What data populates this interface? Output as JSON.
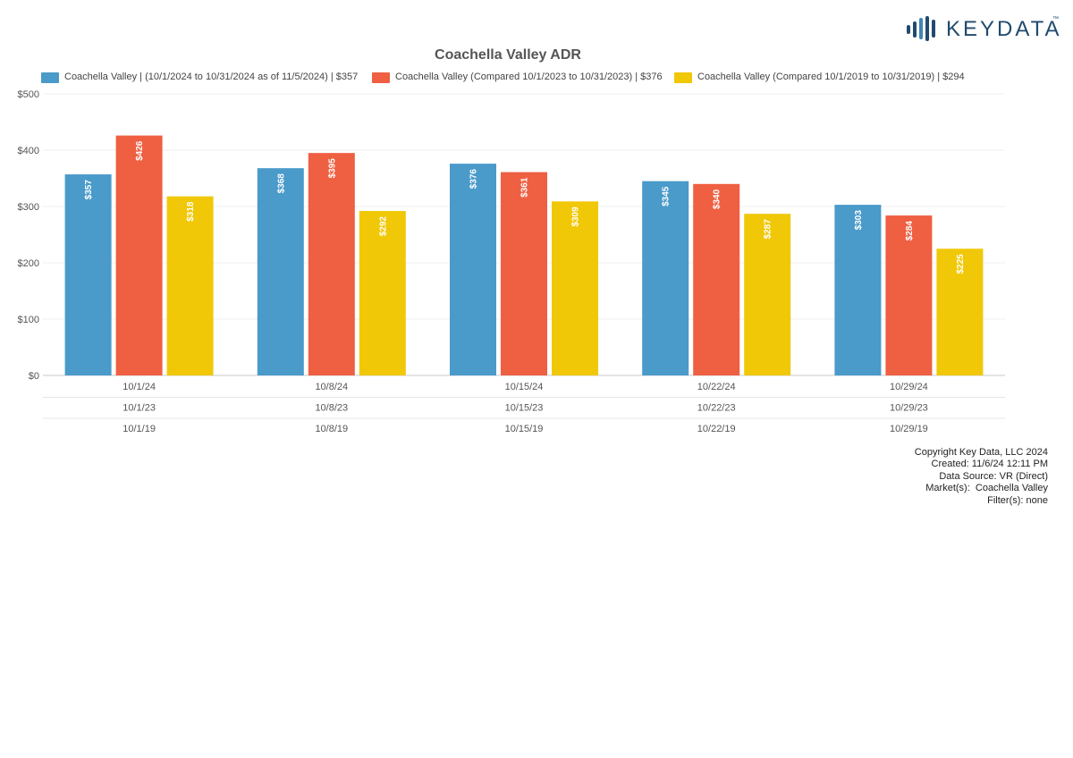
{
  "brand": {
    "logo_text": "KEYDATA",
    "logo_tm": "™",
    "logo_color": "#214a6e"
  },
  "chart_data": {
    "type": "bar",
    "title": "Coachella Valley ADR",
    "xlabel": "",
    "ylabel": "",
    "ylim": [
      0,
      500
    ],
    "yticks": [
      "$0",
      "$100",
      "$200",
      "$300",
      "$400",
      "$500"
    ],
    "ytick_values": [
      0,
      100,
      200,
      300,
      400,
      500
    ],
    "grid": true,
    "legend_position": "top",
    "categories": [
      "10/1/24",
      "10/8/24",
      "10/15/24",
      "10/22/24",
      "10/29/24"
    ],
    "category_rows": [
      [
        "10/1/24",
        "10/8/24",
        "10/15/24",
        "10/22/24",
        "10/29/24"
      ],
      [
        "10/1/23",
        "10/8/23",
        "10/15/23",
        "10/22/23",
        "10/29/23"
      ],
      [
        "10/1/19",
        "10/8/19",
        "10/15/19",
        "10/22/19",
        "10/29/19"
      ]
    ],
    "series": [
      {
        "name": "Coachella Valley | (10/1/2024 to 10/31/2024 as of 11/5/2024) | $357",
        "color": "#4a9aca",
        "values": [
          357,
          368,
          376,
          345,
          303
        ],
        "labels": [
          "$357",
          "$368",
          "$376",
          "$345",
          "$303"
        ]
      },
      {
        "name": "Coachella Valley (Compared 10/1/2023 to 10/31/2023) | $376",
        "color": "#ef5f42",
        "values": [
          426,
          395,
          361,
          340,
          284
        ],
        "labels": [
          "$426",
          "$395",
          "$361",
          "$340",
          "$284"
        ]
      },
      {
        "name": "Coachella Valley (Compared 10/1/2019 to 10/31/2019) | $294",
        "color": "#f0c808",
        "values": [
          318,
          292,
          309,
          287,
          225
        ],
        "labels": [
          "$318",
          "$292",
          "$309",
          "$287",
          "$225"
        ]
      }
    ]
  },
  "footer": {
    "copyright": "Copyright Key Data, LLC 2024",
    "created": "Created: 11/6/24 12:11 PM",
    "data_source": "Data Source: VR (Direct)",
    "markets": "Market(s):  Coachella Valley",
    "filters": "Filter(s): none"
  }
}
